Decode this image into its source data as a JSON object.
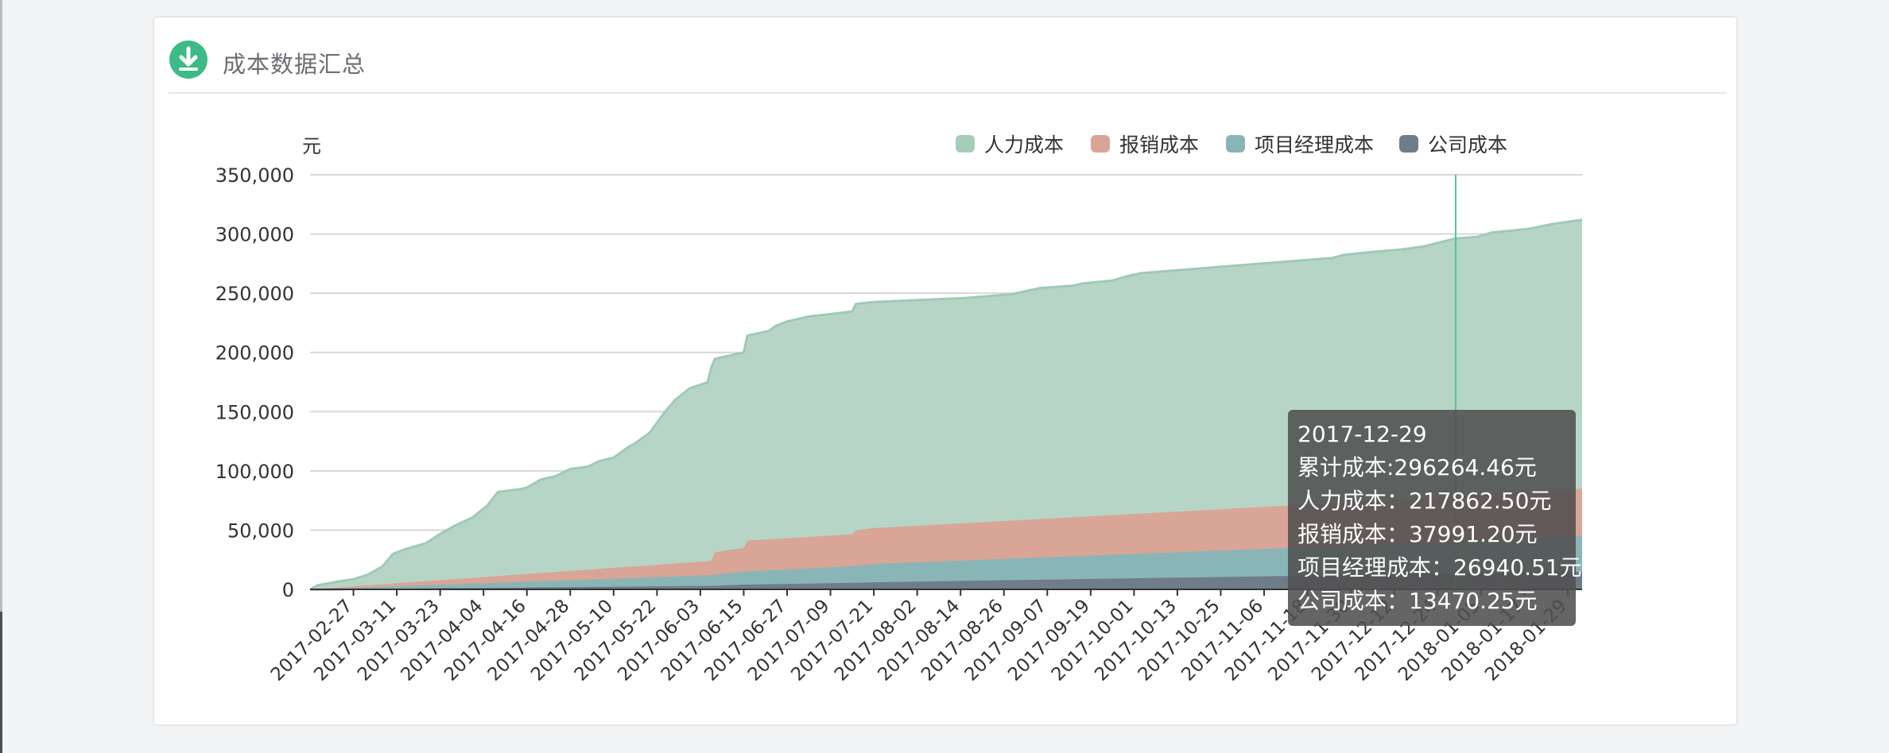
{
  "card": {
    "title": "成本数据汇总",
    "icon": "download-icon",
    "icon_color": "#3dbb86"
  },
  "chart_data": {
    "type": "area",
    "stacked": true,
    "yunit": "元",
    "ylim": [
      0,
      350000
    ],
    "yticks": [
      0,
      50000,
      100000,
      150000,
      200000,
      250000,
      300000,
      350000
    ],
    "ytick_labels": [
      "0",
      "50,000",
      "100,000",
      "150,000",
      "200,000",
      "250,000",
      "300,000",
      "350,000"
    ],
    "x_tick_labels": [
      "2017-02-27",
      "2017-03-11",
      "2017-03-23",
      "2017-04-04",
      "2017-04-16",
      "2017-04-28",
      "2017-05-10",
      "2017-05-22",
      "2017-06-03",
      "2017-06-15",
      "2017-06-27",
      "2017-07-09",
      "2017-07-21",
      "2017-08-02",
      "2017-08-14",
      "2017-08-26",
      "2017-09-07",
      "2017-09-19",
      "2017-10-01",
      "2017-10-13",
      "2017-10-25",
      "2017-11-06",
      "2017-11-18",
      "2017-11-30",
      "2017-12-12",
      "2017-12-24",
      "2018-01-05",
      "2018-01-17",
      "2018-01-29"
    ],
    "x_range": [
      "2017-02-15",
      "2018-02-02"
    ],
    "legend_position": "top-right",
    "grid": true,
    "series": [
      {
        "name": "公司成本",
        "color": "#6f7c89",
        "points": [
          [
            "2017-02-15",
            0
          ],
          [
            "2017-06-06",
            3000
          ],
          [
            "2017-06-15",
            4000
          ],
          [
            "2017-07-15",
            5500
          ],
          [
            "2017-07-21",
            6000
          ],
          [
            "2017-12-29",
            13470.25
          ],
          [
            "2018-02-02",
            15000
          ]
        ]
      },
      {
        "name": "项目经理成本",
        "color": "#8ab5b6",
        "points": [
          [
            "2017-02-15",
            0
          ],
          [
            "2017-06-06",
            9000
          ],
          [
            "2017-06-15",
            11000
          ],
          [
            "2017-07-15",
            14000
          ],
          [
            "2017-07-21",
            15500
          ],
          [
            "2017-12-29",
            26940.51
          ],
          [
            "2018-02-02",
            30000
          ]
        ]
      },
      {
        "name": "报销成本",
        "color": "#d9a596",
        "points": [
          [
            "2017-02-15",
            0
          ],
          [
            "2017-06-06",
            12000
          ],
          [
            "2017-06-07",
            19000
          ],
          [
            "2017-06-15",
            20000
          ],
          [
            "2017-06-16",
            26000
          ],
          [
            "2017-07-15",
            27000
          ],
          [
            "2017-07-16",
            30000
          ],
          [
            "2017-12-29",
            37991.2
          ],
          [
            "2018-02-02",
            40000
          ]
        ]
      },
      {
        "name": "人力成本",
        "color": "#b6d5c7",
        "line_color": "#9fcab5",
        "points": [
          [
            "2017-02-15",
            0
          ],
          [
            "2017-02-17",
            3000
          ],
          [
            "2017-02-23",
            5000
          ],
          [
            "2017-02-27",
            6000
          ],
          [
            "2017-03-03",
            9000
          ],
          [
            "2017-03-07",
            15000
          ],
          [
            "2017-03-10",
            25000
          ],
          [
            "2017-03-13",
            28000
          ],
          [
            "2017-03-19",
            32000
          ],
          [
            "2017-03-23",
            39000
          ],
          [
            "2017-03-27",
            45000
          ],
          [
            "2017-04-01",
            51000
          ],
          [
            "2017-04-05",
            60000
          ],
          [
            "2017-04-08",
            71000
          ],
          [
            "2017-04-14",
            72000
          ],
          [
            "2017-04-16",
            73000
          ],
          [
            "2017-04-20",
            79000
          ],
          [
            "2017-04-24",
            81000
          ],
          [
            "2017-04-28",
            86000
          ],
          [
            "2017-05-03",
            87000
          ],
          [
            "2017-05-06",
            91000
          ],
          [
            "2017-05-10",
            93000
          ],
          [
            "2017-05-14",
            101000
          ],
          [
            "2017-05-16",
            104000
          ],
          [
            "2017-05-20",
            112000
          ],
          [
            "2017-05-24",
            128000
          ],
          [
            "2017-05-27",
            138000
          ],
          [
            "2017-05-31",
            147000
          ],
          [
            "2017-06-05",
            151000
          ],
          [
            "2017-06-06",
            163000
          ],
          [
            "2017-06-15",
            165000
          ],
          [
            "2017-06-16",
            173000
          ],
          [
            "2017-06-22",
            176000
          ],
          [
            "2017-06-24",
            180000
          ],
          [
            "2017-06-27",
            183000
          ],
          [
            "2017-07-03",
            186000
          ],
          [
            "2017-07-15",
            188000
          ],
          [
            "2017-07-16",
            191000
          ],
          [
            "2017-08-15",
            190000
          ],
          [
            "2017-08-28",
            191000
          ],
          [
            "2017-09-01",
            193000
          ],
          [
            "2017-09-05",
            195000
          ],
          [
            "2017-09-14",
            195500
          ],
          [
            "2017-09-17",
            197000
          ],
          [
            "2017-09-25",
            198000
          ],
          [
            "2017-09-29",
            201000
          ],
          [
            "2017-10-03",
            203000
          ],
          [
            "2017-11-25",
            207000
          ],
          [
            "2017-11-28",
            209000
          ],
          [
            "2017-12-04",
            210000
          ],
          [
            "2017-12-14",
            211000
          ],
          [
            "2017-12-20",
            212500
          ],
          [
            "2017-12-29",
            217862.5
          ],
          [
            "2018-01-04",
            218000
          ],
          [
            "2018-01-08",
            221000
          ],
          [
            "2018-01-18",
            222000
          ],
          [
            "2018-01-25",
            225000
          ],
          [
            "2018-02-02",
            227000
          ]
        ]
      }
    ],
    "legend_order": [
      "人力成本",
      "报销成本",
      "项目经理成本",
      "公司成本"
    ],
    "cursor_date": "2017-12-29",
    "cursor_color": "#59c08f",
    "tooltip": {
      "date": "2017-12-29",
      "total": "累计成本:296264.46元",
      "lines": [
        "人力成本：217862.50元",
        "报销成本：37991.20元",
        "项目经理成本：26940.51元",
        "公司成本：13470.25元"
      ]
    }
  }
}
